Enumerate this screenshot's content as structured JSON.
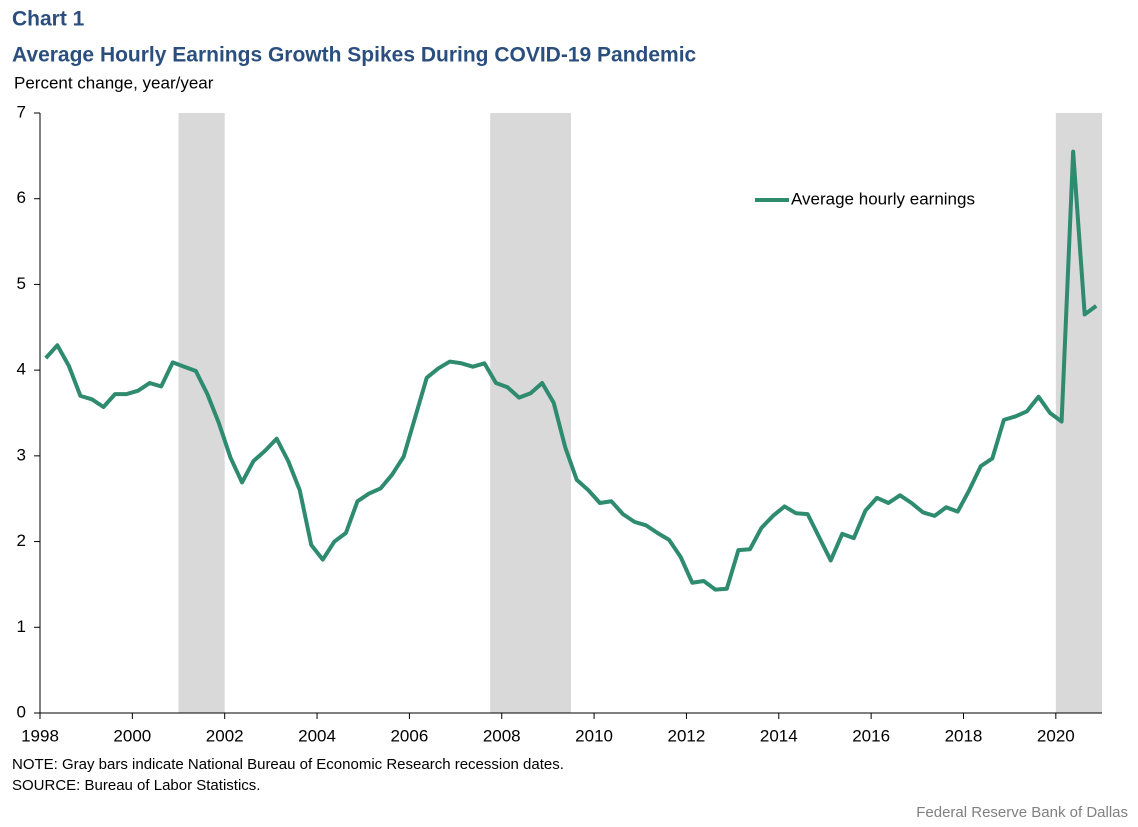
{
  "chart_data": {
    "type": "line",
    "label": "Chart 1",
    "title": "Average Hourly Earnings Growth Spikes During COVID-19 Pandemic",
    "y_label": "Percent change, year/year",
    "note": "NOTE: Gray bars indicate National Bureau of Economic Research recession dates.",
    "source": "SOURCE: Bureau of Labor Statistics.",
    "credit": "Federal Reserve Bank of Dallas",
    "xlim": [
      1998,
      2021
    ],
    "xticks": [
      1998,
      2000,
      2002,
      2004,
      2006,
      2008,
      2010,
      2012,
      2014,
      2016,
      2018,
      2020
    ],
    "ylim": [
      0,
      7
    ],
    "yticks": [
      0,
      1,
      2,
      3,
      4,
      5,
      6,
      7
    ],
    "recessions": [
      [
        2001,
        2002
      ],
      [
        2007.75,
        2009.5
      ],
      [
        2020,
        2021
      ]
    ],
    "recession_color": "#d9d9d9",
    "legend": "upper right",
    "x": [
      1998.125,
      1998.375,
      1998.625,
      1998.875,
      1999.125,
      1999.375,
      1999.625,
      1999.875,
      2000.125,
      2000.375,
      2000.625,
      2000.875,
      2001.125,
      2001.375,
      2001.625,
      2001.875,
      2002.125,
      2002.375,
      2002.625,
      2002.875,
      2003.125,
      2003.375,
      2003.625,
      2003.875,
      2004.125,
      2004.375,
      2004.625,
      2004.875,
      2005.125,
      2005.375,
      2005.625,
      2005.875,
      2006.125,
      2006.375,
      2006.625,
      2006.875,
      2007.125,
      2007.375,
      2007.625,
      2007.875,
      2008.125,
      2008.375,
      2008.625,
      2008.875,
      2009.125,
      2009.375,
      2009.625,
      2009.875,
      2010.125,
      2010.375,
      2010.625,
      2010.875,
      2011.125,
      2011.375,
      2011.625,
      2011.875,
      2012.125,
      2012.375,
      2012.625,
      2012.875,
      2013.125,
      2013.375,
      2013.625,
      2013.875,
      2014.125,
      2014.375,
      2014.625,
      2014.875,
      2015.125,
      2015.375,
      2015.625,
      2015.875,
      2016.125,
      2016.375,
      2016.625,
      2016.875,
      2017.125,
      2017.375,
      2017.625,
      2017.875,
      2018.125,
      2018.375,
      2018.625,
      2018.875,
      2019.125,
      2019.375,
      2019.625,
      2019.875,
      2020.125,
      2020.375,
      2020.625,
      2020.875
    ],
    "series": [
      {
        "name": "Average hourly earnings",
        "color": "#2e8b6e",
        "values": [
          4.14,
          4.29,
          4.05,
          3.7,
          3.66,
          3.57,
          3.72,
          3.72,
          3.76,
          3.85,
          3.81,
          4.09,
          4.04,
          3.99,
          3.72,
          3.38,
          2.98,
          2.69,
          2.94,
          3.06,
          3.2,
          2.94,
          2.6,
          1.96,
          1.79,
          2.0,
          2.1,
          2.47,
          2.56,
          2.62,
          2.78,
          2.99,
          3.45,
          3.91,
          4.02,
          4.1,
          4.08,
          4.04,
          4.08,
          3.85,
          3.8,
          3.68,
          3.73,
          3.85,
          3.62,
          3.1,
          2.72,
          2.6,
          2.45,
          2.47,
          2.32,
          2.23,
          2.19,
          2.1,
          2.02,
          1.82,
          1.52,
          1.54,
          1.44,
          1.45,
          1.9,
          1.91,
          2.16,
          2.3,
          2.41,
          2.33,
          2.32,
          2.05,
          1.78,
          2.09,
          2.04,
          2.36,
          2.51,
          2.45,
          2.54,
          2.45,
          2.34,
          2.3,
          2.4,
          2.35,
          2.6,
          2.88,
          2.97,
          3.42,
          3.46,
          3.52,
          3.69,
          3.5,
          3.4,
          6.55,
          4.65,
          4.75
        ]
      }
    ]
  }
}
